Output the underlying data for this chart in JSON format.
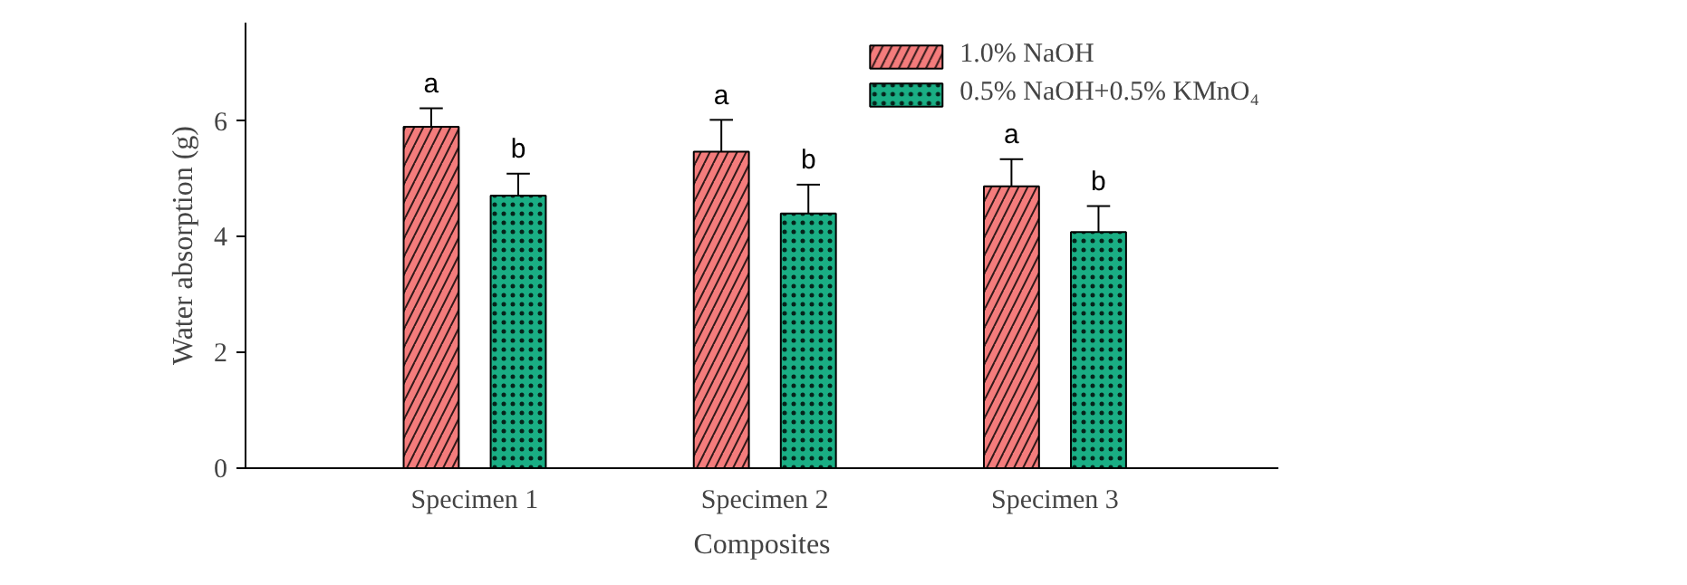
{
  "chart_data": {
    "type": "bar",
    "xlabel": "Composites",
    "ylabel": "Water absorption (g)",
    "categories": [
      "Specimen 1",
      "Specimen 2",
      "Specimen 3"
    ],
    "series": [
      {
        "name": "1.0% NaOH",
        "color": "#f47c7c",
        "values": [
          5.9,
          5.47,
          4.87
        ],
        "errors": [
          0.32,
          0.55,
          0.47
        ]
      },
      {
        "name": "0.5% NaOH+0.5% KMnO₄",
        "color": "#1aae84",
        "values": [
          4.71,
          4.4,
          4.08
        ],
        "errors": [
          0.38,
          0.5,
          0.45
        ]
      }
    ],
    "ylim": [
      0,
      7.7
    ],
    "yticks": [
      0,
      2,
      4,
      6
    ],
    "grid": false,
    "legend": "top right",
    "annotations": [
      "a",
      "b",
      "a",
      "b",
      "a",
      "b"
    ]
  }
}
